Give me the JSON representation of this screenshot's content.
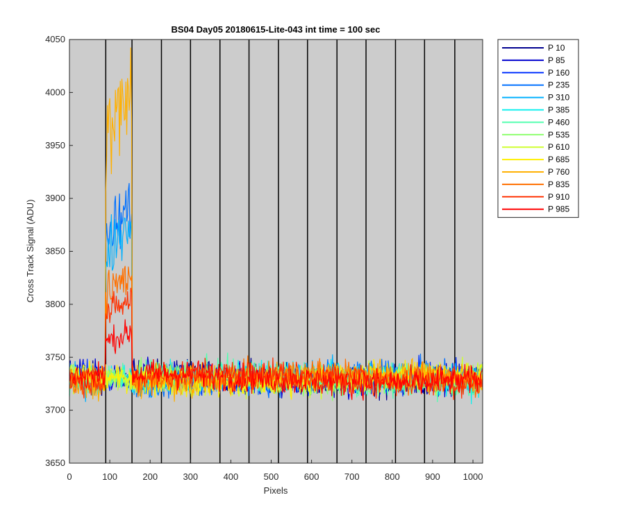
{
  "chart_data": {
    "type": "line",
    "title": "BS04 Day05 20180615-Lite-043 int time = 100 sec",
    "xlabel": "Pixels",
    "ylabel": "Cross Track Signal (ADU)",
    "xlim": [
      0,
      1024
    ],
    "ylim": [
      3650,
      4050
    ],
    "xticks": [
      0,
      100,
      200,
      300,
      400,
      500,
      600,
      700,
      800,
      900,
      1000
    ],
    "yticks": [
      3650,
      3700,
      3750,
      3800,
      3850,
      3900,
      3950,
      4000,
      4050
    ],
    "plot_background": "#cccccc",
    "vertical_separators_at": [
      90,
      155,
      228,
      300,
      373,
      445,
      518,
      590,
      663,
      735,
      808,
      880,
      955
    ],
    "legend_position": "outside-right",
    "bump_region": [
      90,
      155
    ],
    "series": [
      {
        "name": "P 10",
        "color": "#00008f",
        "base": 3730,
        "bump": 3730
      },
      {
        "name": "P 85",
        "color": "#0000cf",
        "base": 3730,
        "bump": 3730
      },
      {
        "name": "P 160",
        "color": "#0030ff",
        "base": 3730,
        "bump": 3730
      },
      {
        "name": "P 235",
        "color": "#0070ff",
        "base": 3730,
        "bump": 3860
      },
      {
        "name": "P 310",
        "color": "#00b0ff",
        "base": 3730,
        "bump": 3850
      },
      {
        "name": "P 385",
        "color": "#10f0ef",
        "base": 3730,
        "bump": 3730
      },
      {
        "name": "P 460",
        "color": "#50ffaf",
        "base": 3730,
        "bump": 3730
      },
      {
        "name": "P 535",
        "color": "#8fff70",
        "base": 3730,
        "bump": 3730
      },
      {
        "name": "P 610",
        "color": "#cfff30",
        "base": 3730,
        "bump": 3730
      },
      {
        "name": "P 685",
        "color": "#ffef00",
        "base": 3730,
        "bump": 3730
      },
      {
        "name": "P 760",
        "color": "#ffb000",
        "base": 3730,
        "bump": 3950
      },
      {
        "name": "P 835",
        "color": "#ff7000",
        "base": 3730,
        "bump": 3810
      },
      {
        "name": "P 910",
        "color": "#ff3000",
        "base": 3730,
        "bump": 3790
      },
      {
        "name": "P 985",
        "color": "#ff0000",
        "base": 3730,
        "bump": 3765
      }
    ]
  }
}
